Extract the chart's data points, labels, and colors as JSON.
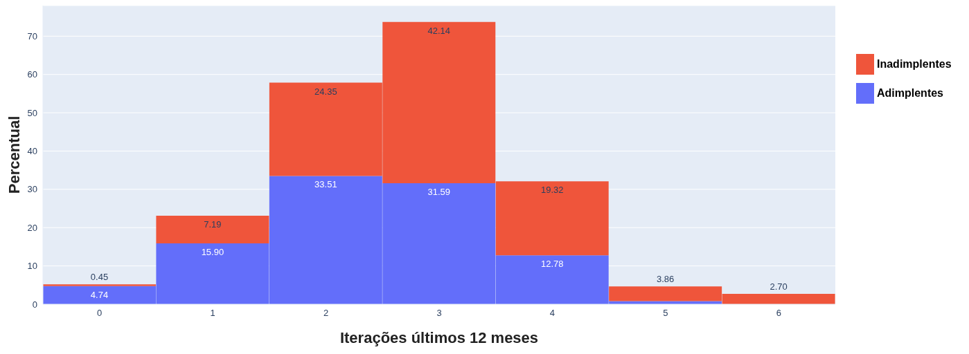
{
  "chart_data": {
    "type": "bar",
    "stacked": true,
    "xlabel": "Iterações últimos 12 meses",
    "ylabel": "Percentual",
    "categories": [
      "0",
      "1",
      "2",
      "3",
      "4",
      "5",
      "6"
    ],
    "series": [
      {
        "name": "Adimplentes",
        "color": "#636efa",
        "values": [
          4.74,
          15.9,
          33.51,
          31.59,
          12.78,
          0.8,
          null
        ],
        "value_labels": [
          "4.74",
          "15.90",
          "33.51",
          "31.59",
          "12.78",
          null,
          null
        ]
      },
      {
        "name": "Inadimplentes",
        "color": "#ef553b",
        "values": [
          0.45,
          7.19,
          24.35,
          42.14,
          19.32,
          3.86,
          2.7
        ],
        "value_labels": [
          "0.45",
          "7.19",
          "24.35",
          "42.14",
          "19.32",
          "3.86",
          "2.70"
        ]
      }
    ],
    "ylim": [
      0,
      78
    ],
    "yticks": [
      0,
      10,
      20,
      30,
      40,
      50,
      60,
      70
    ],
    "grid": "y",
    "legend": "top right"
  }
}
